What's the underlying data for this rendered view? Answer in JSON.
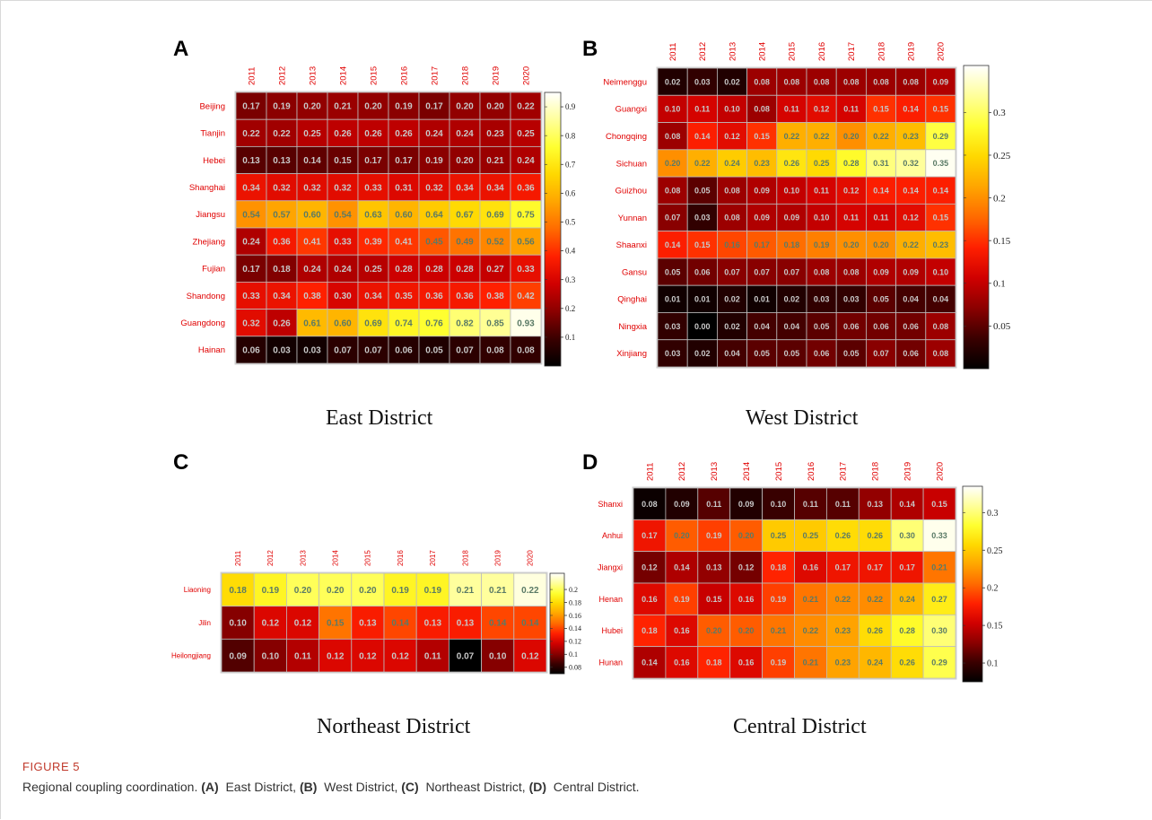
{
  "figure": {
    "label": "FIGURE 5",
    "caption_prefix": "Regional coupling coordination.",
    "caption_parts": [
      {
        "letter": "(A)",
        "text": " East District,"
      },
      {
        "letter": "(B)",
        "text": " West District,"
      },
      {
        "letter": "(C)",
        "text": " Northeast District,"
      },
      {
        "letter": "(D)",
        "text": " Central District."
      }
    ]
  },
  "colors": {
    "gradient": [
      "#000000",
      "#3a0000",
      "#8b0000",
      "#d00000",
      "#ff2000",
      "#ff6a00",
      "#ffa500",
      "#ffd800",
      "#ffff30",
      "#ffff9a",
      "#ffffff"
    ],
    "label_red": "#e00000",
    "cell_text_light": "#c8c8c8",
    "cell_text_dark": "#5a7a66"
  },
  "chart_data": [
    {
      "type": "heatmap",
      "panel": "A",
      "title": "East District",
      "years": [
        "2011",
        "2012",
        "2013",
        "2014",
        "2015",
        "2016",
        "2017",
        "2018",
        "2019",
        "2020"
      ],
      "rows": [
        "Beijing",
        "Tianjin",
        "Hebei",
        "Shanghai",
        "Jiangsu",
        "Zhejiang",
        "Fujian",
        "Shandong",
        "Guangdong",
        "Hainan"
      ],
      "values": [
        [
          0.17,
          0.19,
          0.2,
          0.21,
          0.2,
          0.19,
          0.17,
          0.2,
          0.2,
          0.22
        ],
        [
          0.22,
          0.22,
          0.25,
          0.26,
          0.26,
          0.26,
          0.24,
          0.24,
          0.23,
          0.25
        ],
        [
          0.13,
          0.13,
          0.14,
          0.15,
          0.17,
          0.17,
          0.19,
          0.2,
          0.21,
          0.24
        ],
        [
          0.34,
          0.32,
          0.32,
          0.32,
          0.33,
          0.31,
          0.32,
          0.34,
          0.34,
          0.36
        ],
        [
          0.54,
          0.57,
          0.6,
          0.54,
          0.63,
          0.6,
          0.64,
          0.67,
          0.69,
          0.75
        ],
        [
          0.24,
          0.36,
          0.41,
          0.33,
          0.39,
          0.41,
          0.45,
          0.49,
          0.52,
          0.56
        ],
        [
          0.17,
          0.18,
          0.24,
          0.24,
          0.25,
          0.28,
          0.28,
          0.28,
          0.27,
          0.33
        ],
        [
          0.33,
          0.34,
          0.38,
          0.3,
          0.34,
          0.35,
          0.36,
          0.36,
          0.38,
          0.42
        ],
        [
          0.32,
          0.26,
          0.61,
          0.6,
          0.69,
          0.74,
          0.76,
          0.82,
          0.85,
          0.93
        ],
        [
          0.06,
          0.03,
          0.03,
          0.07,
          0.07,
          0.06,
          0.05,
          0.07,
          0.08,
          0.08
        ]
      ],
      "colorbar": {
        "min": 0.0,
        "max": 0.95,
        "ticks": [
          0.1,
          0.2,
          0.3,
          0.4,
          0.5,
          0.6,
          0.7,
          0.8,
          0.9
        ],
        "tick_labels": [
          "0.1",
          "0.2",
          "0.3",
          "0.4",
          "0.5",
          "0.6",
          "0.7",
          "0.8",
          "0.9"
        ]
      }
    },
    {
      "type": "heatmap",
      "panel": "B",
      "title": "West District",
      "years": [
        "2011",
        "2012",
        "2013",
        "2014",
        "2015",
        "2016",
        "2017",
        "2018",
        "2019",
        "2020"
      ],
      "rows": [
        "Neimenggu",
        "Guangxi",
        "Chongqing",
        "Sichuan",
        "Guizhou",
        "Yunnan",
        "Shaanxi",
        "Gansu",
        "Qinghai",
        "Ningxia",
        "Xinjiang"
      ],
      "values": [
        [
          0.02,
          0.03,
          0.02,
          0.08,
          0.08,
          0.08,
          0.08,
          0.08,
          0.08,
          0.09
        ],
        [
          0.1,
          0.11,
          0.1,
          0.08,
          0.11,
          0.12,
          0.11,
          0.15,
          0.14,
          0.15
        ],
        [
          0.08,
          0.14,
          0.12,
          0.15,
          0.22,
          0.22,
          0.2,
          0.22,
          0.23,
          0.29
        ],
        [
          0.2,
          0.22,
          0.24,
          0.23,
          0.26,
          0.25,
          0.28,
          0.31,
          0.32,
          0.35
        ],
        [
          0.08,
          0.05,
          0.08,
          0.09,
          0.1,
          0.11,
          0.12,
          0.14,
          0.14,
          0.14
        ],
        [
          0.07,
          0.03,
          0.08,
          0.09,
          0.09,
          0.1,
          0.11,
          0.11,
          0.12,
          0.15
        ],
        [
          0.14,
          0.15,
          0.16,
          0.17,
          0.18,
          0.19,
          0.2,
          0.2,
          0.22,
          0.23
        ],
        [
          0.05,
          0.06,
          0.07,
          0.07,
          0.07,
          0.08,
          0.08,
          0.09,
          0.09,
          0.1
        ],
        [
          0.01,
          0.01,
          0.02,
          0.01,
          0.02,
          0.03,
          0.03,
          0.05,
          0.04,
          0.04
        ],
        [
          0.03,
          0.0,
          0.02,
          0.04,
          0.04,
          0.05,
          0.06,
          0.06,
          0.06,
          0.08
        ],
        [
          0.03,
          0.02,
          0.04,
          0.05,
          0.05,
          0.06,
          0.05,
          0.07,
          0.06,
          0.08
        ]
      ],
      "colorbar": {
        "min": 0.0,
        "max": 0.355,
        "ticks": [
          0.05,
          0.1,
          0.15,
          0.2,
          0.25,
          0.3
        ],
        "tick_labels": [
          "0.05",
          "0.1",
          "0.15",
          "0.2",
          "0.25",
          "0.3"
        ]
      }
    },
    {
      "type": "heatmap",
      "panel": "C",
      "title": "Northeast District",
      "years": [
        "2011",
        "2012",
        "2013",
        "2014",
        "2015",
        "2016",
        "2017",
        "2018",
        "2019",
        "2020"
      ],
      "rows": [
        "Liaoning",
        "Jilin",
        "Heilongjiang"
      ],
      "values": [
        [
          0.18,
          0.19,
          0.2,
          0.2,
          0.2,
          0.19,
          0.19,
          0.21,
          0.21,
          0.22
        ],
        [
          0.1,
          0.12,
          0.12,
          0.15,
          0.13,
          0.14,
          0.13,
          0.13,
          0.14,
          0.14
        ],
        [
          0.09,
          0.1,
          0.11,
          0.12,
          0.12,
          0.12,
          0.11,
          0.07,
          0.1,
          0.12
        ]
      ],
      "colorbar": {
        "min": 0.07,
        "max": 0.225,
        "ticks": [
          0.08,
          0.1,
          0.12,
          0.14,
          0.16,
          0.18,
          0.2
        ],
        "tick_labels": [
          "0.08",
          "0.1",
          "0.12",
          "0.14",
          "0.16",
          "0.18",
          "0.2"
        ],
        "minor_ticks": [
          0.09,
          0.11,
          0.13
        ]
      }
    },
    {
      "type": "heatmap",
      "panel": "D",
      "title": "Central District",
      "years": [
        "2011",
        "2012",
        "2013",
        "2014",
        "2015",
        "2016",
        "2017",
        "2018",
        "2019",
        "2020"
      ],
      "rows": [
        "Shanxi",
        "Anhui",
        "Jiangxi",
        "Henan",
        "Hubei",
        "Hunan"
      ],
      "values": [
        [
          0.08,
          0.09,
          0.11,
          0.09,
          0.1,
          0.11,
          0.11,
          0.13,
          0.14,
          0.15
        ],
        [
          0.17,
          0.2,
          0.19,
          0.2,
          0.25,
          0.25,
          0.26,
          0.26,
          0.3,
          0.33
        ],
        [
          0.12,
          0.14,
          0.13,
          0.12,
          0.18,
          0.16,
          0.17,
          0.17,
          0.17,
          0.21
        ],
        [
          0.16,
          0.19,
          0.15,
          0.16,
          0.19,
          0.21,
          0.22,
          0.22,
          0.24,
          0.27
        ],
        [
          0.18,
          0.16,
          0.2,
          0.2,
          0.21,
          0.22,
          0.23,
          0.26,
          0.28,
          0.3
        ],
        [
          0.14,
          0.16,
          0.18,
          0.16,
          0.19,
          0.21,
          0.23,
          0.24,
          0.26,
          0.29
        ]
      ],
      "colorbar": {
        "min": 0.075,
        "max": 0.335,
        "ticks": [
          0.1,
          0.15,
          0.2,
          0.25,
          0.3
        ],
        "tick_labels": [
          "0.1",
          "0.15",
          "0.2",
          "0.25",
          "0.3"
        ]
      }
    }
  ]
}
